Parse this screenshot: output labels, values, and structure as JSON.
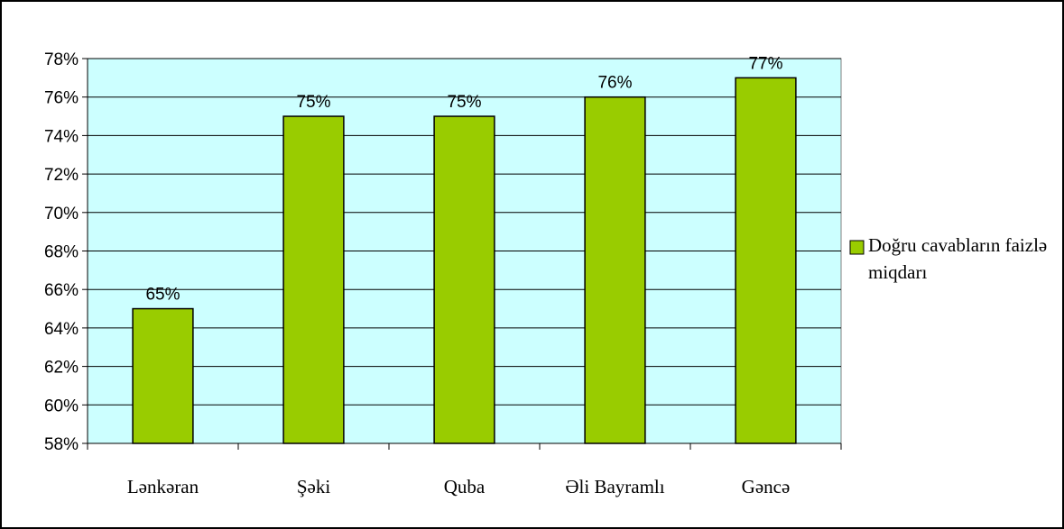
{
  "chart_data": {
    "type": "bar",
    "categories": [
      "Lənkəran",
      "Şəki",
      "Quba",
      "Əli Bayramlı",
      "Gəncə"
    ],
    "series": [
      {
        "name": "Doğru cavabların faizlə miqdarı",
        "color": "#99cc00",
        "values": [
          65,
          75,
          75,
          76,
          77
        ],
        "value_labels": [
          "65%",
          "75%",
          "75%",
          "76%",
          "77%"
        ]
      }
    ],
    "ylim": [
      58,
      78
    ],
    "yticks": [
      {
        "value": 58,
        "label": "58%"
      },
      {
        "value": 60,
        "label": "60%"
      },
      {
        "value": 62,
        "label": "62%"
      },
      {
        "value": 64,
        "label": "64%"
      },
      {
        "value": 66,
        "label": "66%"
      },
      {
        "value": 68,
        "label": "68%"
      },
      {
        "value": 70,
        "label": "70%"
      },
      {
        "value": 72,
        "label": "72%"
      },
      {
        "value": 74,
        "label": "74%"
      },
      {
        "value": 76,
        "label": "76%"
      },
      {
        "value": 78,
        "label": "78%"
      }
    ],
    "grid": true,
    "legend": "right"
  }
}
